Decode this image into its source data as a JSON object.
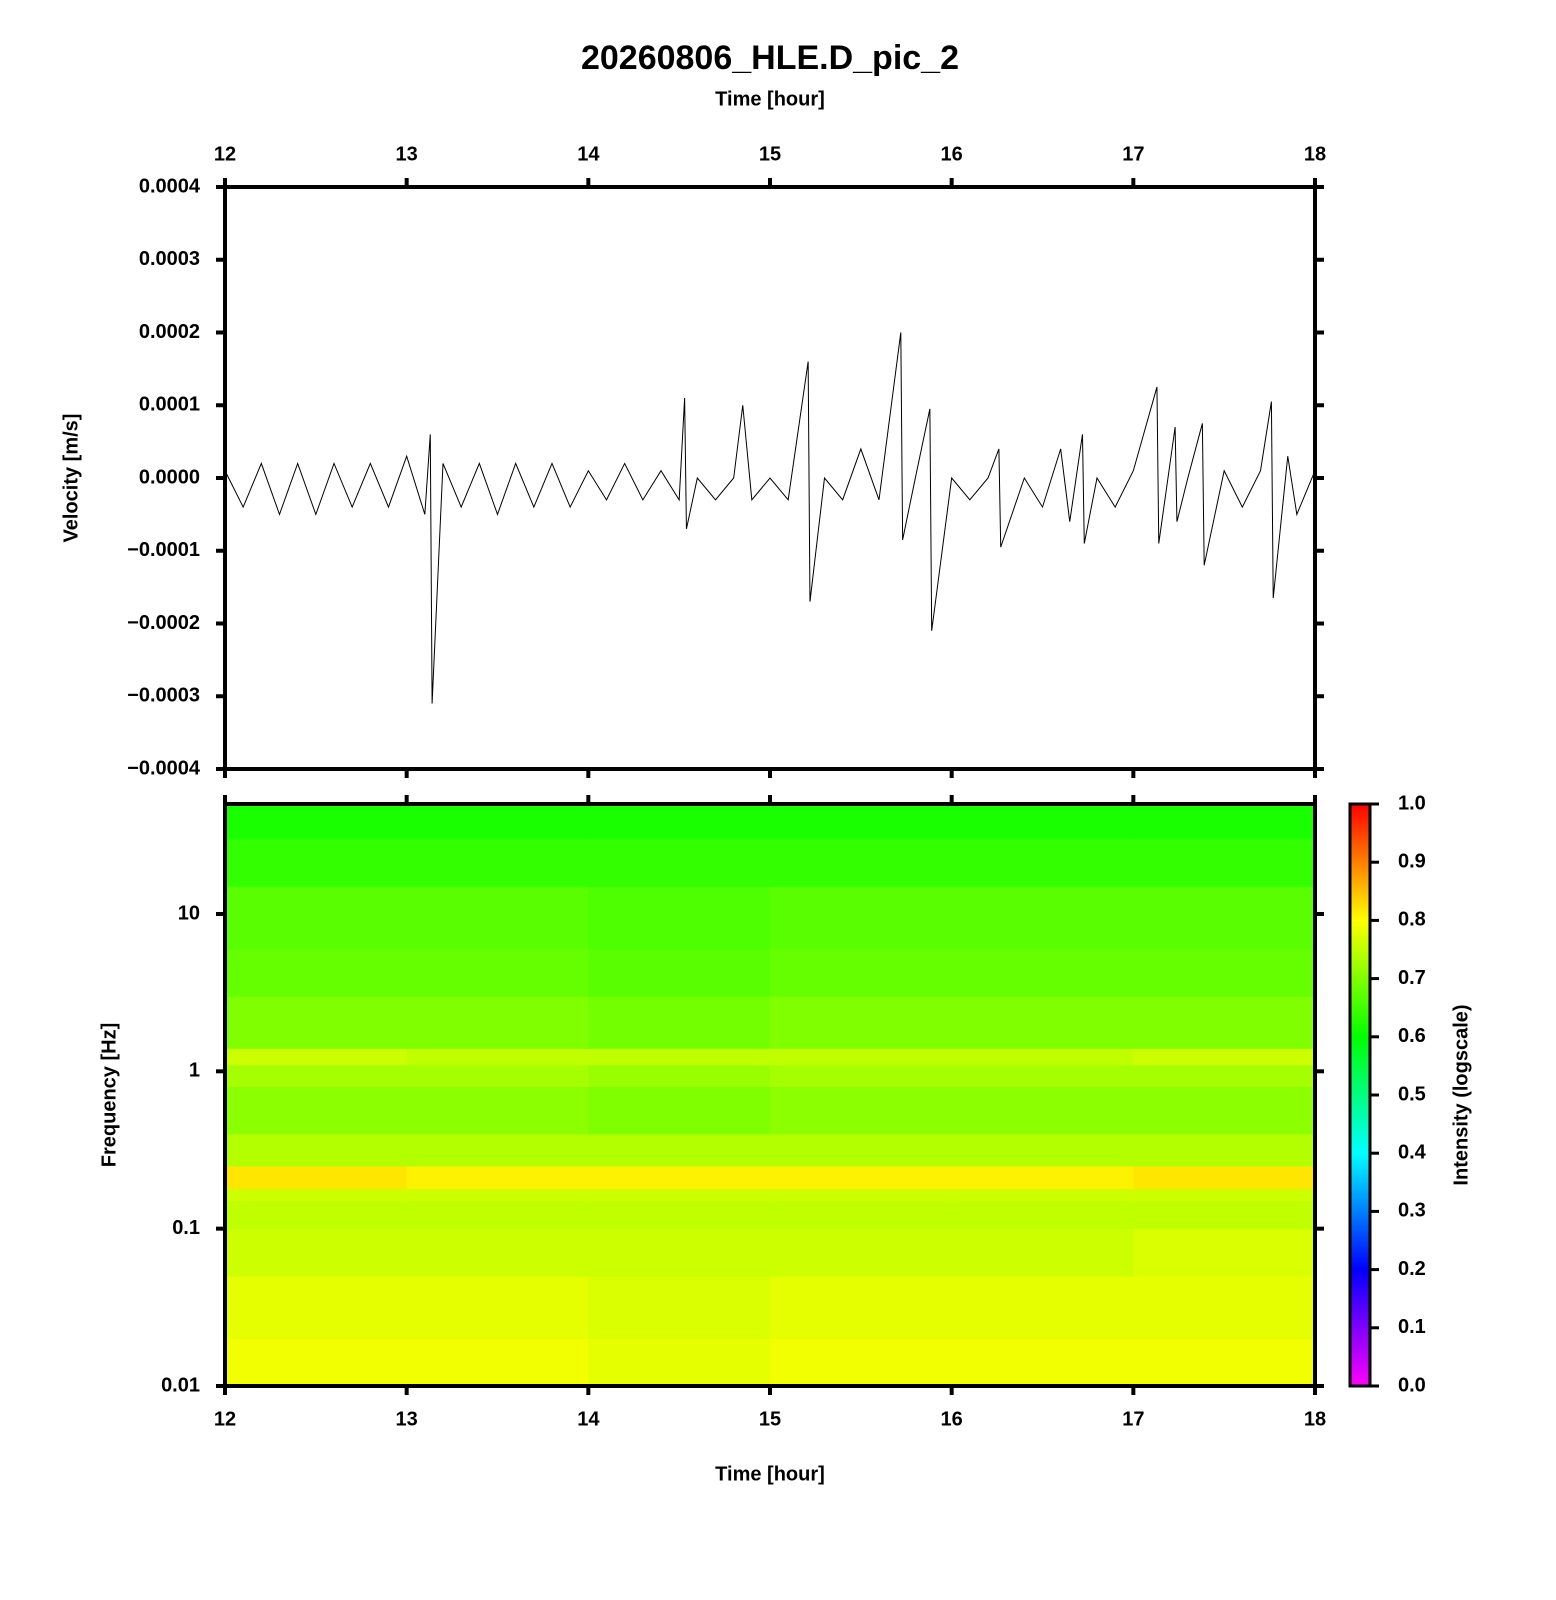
{
  "chart_data": [
    {
      "type": "line",
      "title": "20260806_HLE.D_pic_2",
      "xlabel": "Time [hour]",
      "ylabel": "Velocity [m/s]",
      "xlim": [
        12,
        18
      ],
      "xticks": [
        12,
        13,
        14,
        15,
        16,
        17,
        18
      ],
      "ylim": [
        -0.0004,
        0.0004
      ],
      "yticks": [
        0.0004,
        0.0003,
        0.0002,
        0.0001,
        {
          "value": 0,
          "label": "0.0000"
        },
        {
          "value": -0.0001,
          "label": "−0.0001"
        },
        {
          "value": -0.0002,
          "label": "−0.0002"
        },
        {
          "value": -0.0003,
          "label": "−0.0003"
        },
        {
          "value": -0.0004,
          "label": "−0.0004"
        }
      ],
      "color": "#000000",
      "x": [
        12.0,
        12.1,
        12.2,
        12.3,
        12.4,
        12.5,
        12.6,
        12.7,
        12.8,
        12.9,
        13.0,
        13.1,
        13.13,
        13.14,
        13.2,
        13.3,
        13.4,
        13.5,
        13.6,
        13.7,
        13.8,
        13.9,
        14.0,
        14.1,
        14.2,
        14.3,
        14.4,
        14.5,
        14.53,
        14.54,
        14.6,
        14.7,
        14.8,
        14.85,
        14.9,
        15.0,
        15.1,
        15.21,
        15.22,
        15.3,
        15.4,
        15.5,
        15.6,
        15.72,
        15.73,
        15.8,
        15.88,
        15.89,
        16.0,
        16.1,
        16.2,
        16.26,
        16.27,
        16.4,
        16.5,
        16.6,
        16.65,
        16.72,
        16.73,
        16.8,
        16.9,
        17.0,
        17.13,
        17.14,
        17.23,
        17.24,
        17.3,
        17.38,
        17.39,
        17.5,
        17.6,
        17.7,
        17.76,
        17.77,
        17.85,
        17.9,
        18.0
      ],
      "values": [
        1e-05,
        -4e-05,
        2e-05,
        -5e-05,
        2e-05,
        -5e-05,
        2e-05,
        -4e-05,
        2e-05,
        -4e-05,
        3e-05,
        -5e-05,
        6e-05,
        -0.00031,
        2e-05,
        -4e-05,
        2e-05,
        -5e-05,
        2e-05,
        -4e-05,
        2e-05,
        -4e-05,
        1e-05,
        -3e-05,
        2e-05,
        -3e-05,
        1e-05,
        -3e-05,
        0.00011,
        -7e-05,
        0,
        -3e-05,
        0,
        0.0001,
        -3e-05,
        0,
        -3e-05,
        0.00016,
        -0.00017,
        0,
        -3e-05,
        4e-05,
        -3e-05,
        0.0002,
        -8.5e-05,
        0,
        9.5e-05,
        -0.00021,
        0,
        -3e-05,
        0,
        4e-05,
        -9.5e-05,
        0,
        -4e-05,
        4e-05,
        -6e-05,
        6e-05,
        -9e-05,
        0,
        -4e-05,
        1e-05,
        0.000125,
        -9e-05,
        7e-05,
        -6e-05,
        0,
        7.5e-05,
        -0.00012,
        1e-05,
        -4e-05,
        1e-05,
        0.000105,
        -0.000165,
        3e-05,
        -5e-05,
        1e-05
      ]
    },
    {
      "type": "spectrogram",
      "xlabel": "Time [hour]",
      "ylabel": "Frequency [Hz]",
      "xlim": [
        12,
        18
      ],
      "xticks": [
        12,
        13,
        14,
        15,
        16,
        17,
        18
      ],
      "ylim": [
        0.01,
        50
      ],
      "log_y": true,
      "yticks": [
        0.01,
        0.1,
        1,
        10
      ],
      "xbins": [
        12,
        13,
        14,
        15,
        16,
        17,
        18
      ],
      "ybins": [
        0.01,
        0.02,
        0.05,
        0.1,
        0.15,
        0.18,
        0.25,
        0.4,
        0.8,
        1.1,
        1.4,
        3,
        6,
        15,
        30,
        50
      ],
      "values": [
        [
          0.79,
          0.79,
          0.78,
          0.79,
          0.79,
          0.79
        ],
        [
          0.78,
          0.78,
          0.77,
          0.78,
          0.78,
          0.78
        ],
        [
          0.76,
          0.76,
          0.76,
          0.76,
          0.76,
          0.77
        ],
        [
          0.75,
          0.75,
          0.75,
          0.75,
          0.75,
          0.75
        ],
        [
          0.76,
          0.76,
          0.76,
          0.76,
          0.76,
          0.76
        ],
        [
          0.82,
          0.81,
          0.81,
          0.81,
          0.81,
          0.82
        ],
        [
          0.74,
          0.74,
          0.74,
          0.74,
          0.74,
          0.74
        ],
        [
          0.71,
          0.71,
          0.7,
          0.71,
          0.71,
          0.71
        ],
        [
          0.73,
          0.73,
          0.72,
          0.73,
          0.73,
          0.73
        ],
        [
          0.76,
          0.75,
          0.75,
          0.75,
          0.75,
          0.76
        ],
        [
          0.7,
          0.7,
          0.69,
          0.7,
          0.7,
          0.7
        ],
        [
          0.68,
          0.68,
          0.67,
          0.68,
          0.68,
          0.68
        ],
        [
          0.67,
          0.67,
          0.66,
          0.67,
          0.67,
          0.67
        ],
        [
          0.64,
          0.64,
          0.64,
          0.64,
          0.64,
          0.64
        ],
        [
          0.62,
          0.62,
          0.62,
          0.62,
          0.62,
          0.62
        ]
      ],
      "clim": [
        0,
        1
      ],
      "colormap": [
        "#ff00ff",
        "#0000ff",
        "#00ffff",
        "#00ff00",
        "#ffff00",
        "#ff0000"
      ],
      "colorbar_label": "Intensity (logscale)",
      "cticks": [
        {
          "value": 0,
          "label": "0.0"
        },
        0.1,
        0.2,
        0.3,
        0.4,
        0.5,
        0.6,
        0.7,
        0.8,
        0.9,
        {
          "value": 1,
          "label": "1.0"
        }
      ]
    }
  ]
}
